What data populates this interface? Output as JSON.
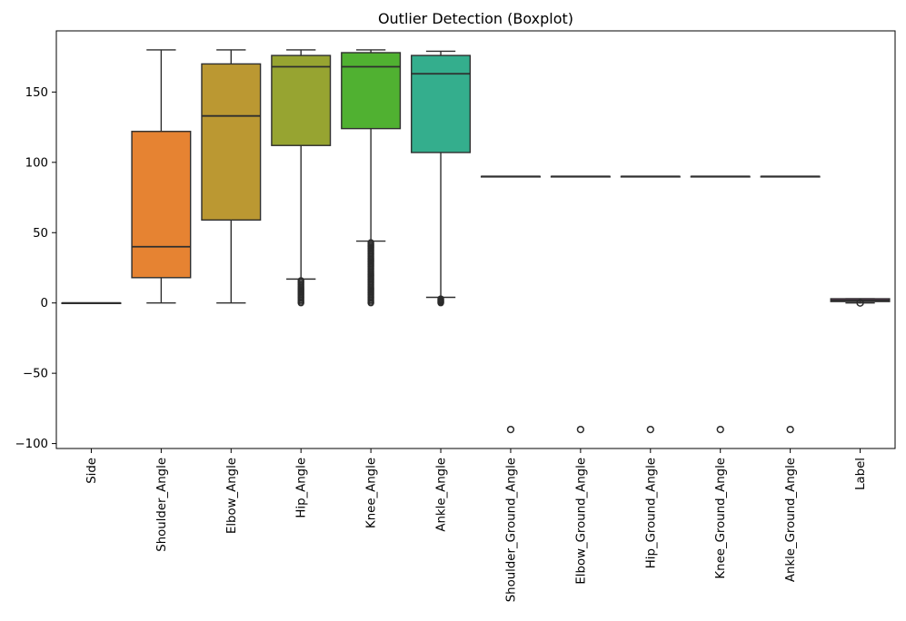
{
  "figure": {
    "background": "#ffffff"
  },
  "chart_data": {
    "type": "boxplot",
    "title": "Outlier Detection (Boxplot)",
    "xlabel": "",
    "ylabel": "",
    "legend": false,
    "grid": false,
    "ylim": [
      -103.5,
      193.5
    ],
    "yticks": [
      -100,
      -50,
      0,
      50,
      100,
      150
    ],
    "ytick_labels": [
      "−100",
      "−50",
      "0",
      "50",
      "100",
      "150"
    ],
    "edge_color": "#2e2e2e",
    "outlier_color": "#2b2b2b",
    "categories": [
      "Side",
      "Shoulder_Angle",
      "Elbow_Angle",
      "Hip_Angle",
      "Knee_Angle",
      "Ankle_Angle",
      "Shoulder_Ground_Angle",
      "Elbow_Ground_Angle",
      "Hip_Ground_Angle",
      "Knee_Ground_Angle",
      "Ankle_Ground_Angle",
      "Label"
    ],
    "boxes": [
      {
        "label": "Side",
        "color": "#f77189",
        "whisker_low": 0,
        "q1": 0,
        "median": 0,
        "q3": 0,
        "whisker_high": 0,
        "outliers": []
      },
      {
        "label": "Shoulder_Angle",
        "color": "#e68332",
        "whisker_low": 0,
        "q1": 18,
        "median": 40,
        "q3": 122,
        "whisker_high": 180,
        "outliers": []
      },
      {
        "label": "Elbow_Angle",
        "color": "#bb9832",
        "whisker_low": 0,
        "q1": 59,
        "median": 133,
        "q3": 170,
        "whisker_high": 180,
        "outliers": []
      },
      {
        "label": "Hip_Angle",
        "color": "#97a431",
        "whisker_low": 17,
        "q1": 112,
        "median": 168,
        "q3": 176,
        "whisker_high": 180,
        "outliers": [],
        "outlier_cluster": {
          "min": 0,
          "max": 16
        }
      },
      {
        "label": "Knee_Angle",
        "color": "#50b131",
        "whisker_low": 44,
        "q1": 124,
        "median": 168,
        "q3": 178,
        "whisker_high": 180,
        "outliers": [],
        "outlier_cluster": {
          "min": 0,
          "max": 43
        }
      },
      {
        "label": "Ankle_Angle",
        "color": "#34ae8d",
        "whisker_low": 4,
        "q1": 107,
        "median": 163,
        "q3": 176,
        "whisker_high": 179,
        "outliers": [],
        "outlier_cluster": {
          "min": 0,
          "max": 3
        }
      },
      {
        "label": "Shoulder_Ground_Angle",
        "color": "#36abb5",
        "whisker_low": 90,
        "q1": 90,
        "median": 90,
        "q3": 90,
        "whisker_high": 90,
        "outliers": [
          -90
        ]
      },
      {
        "label": "Elbow_Ground_Angle",
        "color": "#3aa5df",
        "whisker_low": 90,
        "q1": 90,
        "median": 90,
        "q3": 90,
        "whisker_high": 90,
        "outliers": [
          -90
        ]
      },
      {
        "label": "Hip_Ground_Angle",
        "color": "#6e9af4",
        "whisker_low": 90,
        "q1": 90,
        "median": 90,
        "q3": 90,
        "whisker_high": 90,
        "outliers": [
          -90
        ]
      },
      {
        "label": "Knee_Ground_Angle",
        "color": "#cc7af4",
        "whisker_low": 90,
        "q1": 90,
        "median": 90,
        "q3": 90,
        "whisker_high": 90,
        "outliers": [
          -90
        ]
      },
      {
        "label": "Ankle_Ground_Angle",
        "color": "#f45cf2",
        "whisker_low": 90,
        "q1": 90,
        "median": 90,
        "q3": 90,
        "whisker_high": 90,
        "outliers": [
          -90
        ]
      },
      {
        "label": "Label",
        "color": "#f565cc",
        "whisker_low": 0,
        "q1": 1,
        "median": 2,
        "q3": 3,
        "whisker_high": 3,
        "outliers": [
          0
        ]
      }
    ]
  }
}
